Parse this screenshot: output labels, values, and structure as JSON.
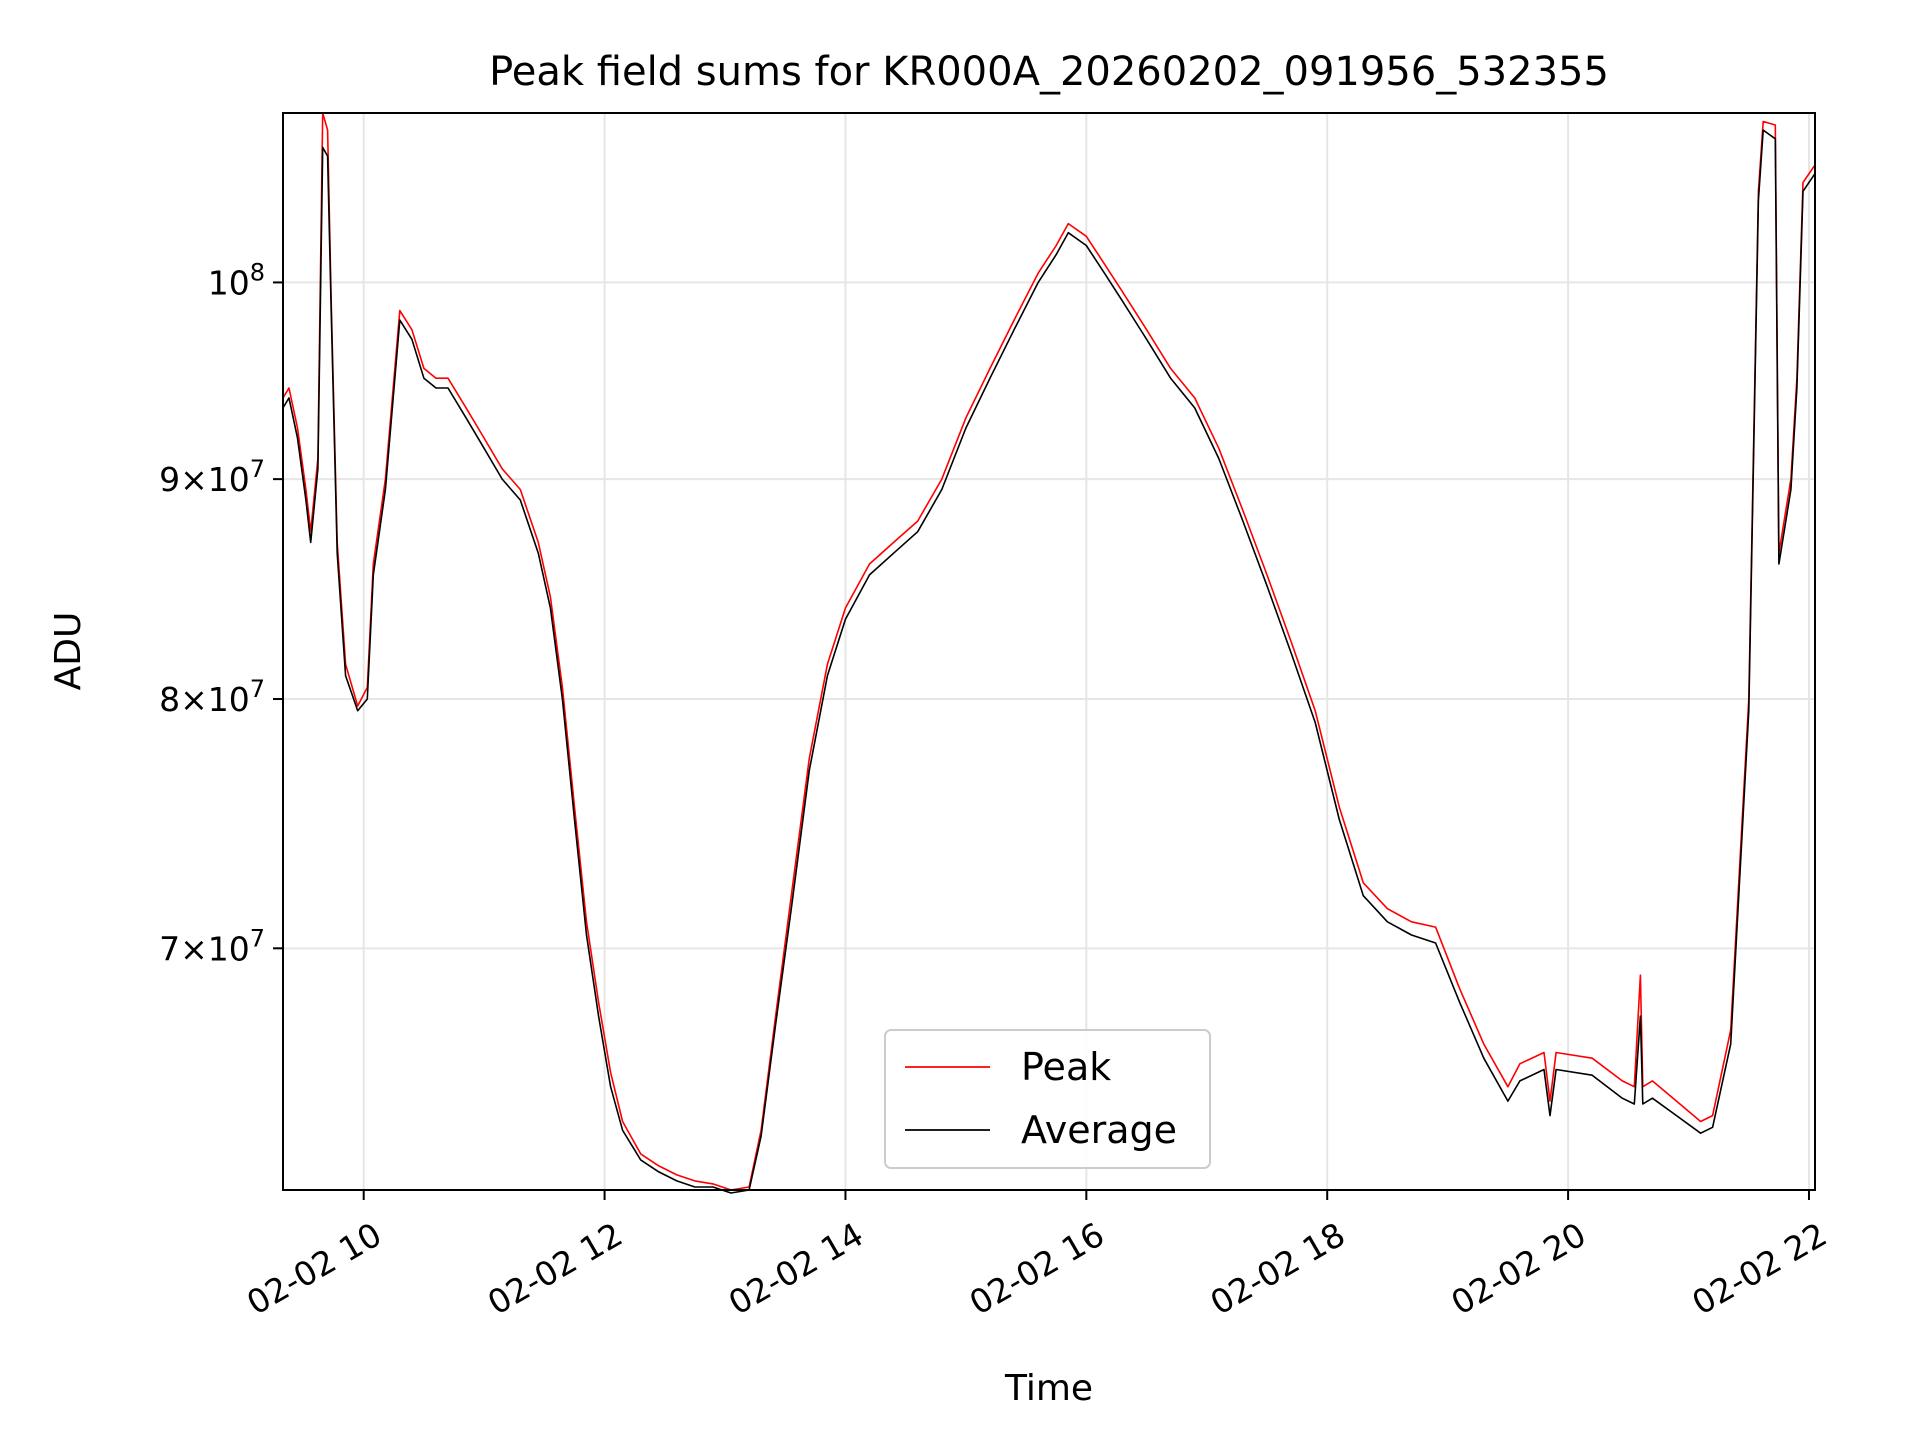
{
  "chart_data": {
    "type": "line",
    "title": "Peak field sums for KR000A_20260202_091956_532355",
    "xlabel": "Time",
    "ylabel": "ADU",
    "yscale": "log",
    "xlim": [
      9.33,
      22.05
    ],
    "ylim": [
      61500000.0,
      109500000.0
    ],
    "grid": true,
    "legend_position": "lower-center",
    "x_ticks": [
      {
        "value": 10,
        "label": "02-02 10"
      },
      {
        "value": 12,
        "label": "02-02 12"
      },
      {
        "value": 14,
        "label": "02-02 14"
      },
      {
        "value": 16,
        "label": "02-02 16"
      },
      {
        "value": 18,
        "label": "02-02 18"
      },
      {
        "value": 20,
        "label": "02-02 20"
      },
      {
        "value": 22,
        "label": "02-02 22"
      }
    ],
    "y_ticks": [
      {
        "value": 70000000,
        "mant": "7",
        "exp": "7"
      },
      {
        "value": 80000000,
        "mant": "8",
        "exp": "7"
      },
      {
        "value": 90000000,
        "mant": "9",
        "exp": "7"
      },
      {
        "value": 100000000,
        "mant": "",
        "exp": "8"
      }
    ],
    "series": [
      {
        "name": "Peak",
        "color": "#ff0000",
        "points": [
          [
            9.33,
            94000000.0
          ],
          [
            9.38,
            94500000.0
          ],
          [
            9.45,
            92500000.0
          ],
          [
            9.52,
            89500000.0
          ],
          [
            9.56,
            87500000.0
          ],
          [
            9.62,
            91000000.0
          ],
          [
            9.66,
            109500000.0
          ],
          [
            9.7,
            108500000.0
          ],
          [
            9.73,
            99000000.0
          ],
          [
            9.78,
            87000000.0
          ],
          [
            9.85,
            81500000.0
          ],
          [
            9.95,
            79700000.0
          ],
          [
            10.03,
            80500000.0
          ],
          [
            10.08,
            86000000.0
          ],
          [
            10.18,
            90000000.0
          ],
          [
            10.3,
            98500000.0
          ],
          [
            10.4,
            97500000.0
          ],
          [
            10.5,
            95500000.0
          ],
          [
            10.6,
            95000000.0
          ],
          [
            10.7,
            95000000.0
          ],
          [
            10.85,
            93500000.0
          ],
          [
            11.0,
            92000000.0
          ],
          [
            11.15,
            90500000.0
          ],
          [
            11.3,
            89500000.0
          ],
          [
            11.45,
            87000000.0
          ],
          [
            11.55,
            84500000.0
          ],
          [
            11.65,
            80500000.0
          ],
          [
            11.75,
            75500000.0
          ],
          [
            11.85,
            71000000.0
          ],
          [
            11.95,
            68000000.0
          ],
          [
            12.05,
            65500000.0
          ],
          [
            12.15,
            63800000.0
          ],
          [
            12.3,
            62700000.0
          ],
          [
            12.45,
            62300000.0
          ],
          [
            12.6,
            62000000.0
          ],
          [
            12.75,
            61800000.0
          ],
          [
            12.9,
            61700000.0
          ],
          [
            13.05,
            61500000.0
          ],
          [
            13.2,
            61600000.0
          ],
          [
            13.3,
            63500000.0
          ],
          [
            13.42,
            67500000.0
          ],
          [
            13.55,
            72000000.0
          ],
          [
            13.7,
            77500000.0
          ],
          [
            13.85,
            81500000.0
          ],
          [
            14.0,
            84000000.0
          ],
          [
            14.2,
            86000000.0
          ],
          [
            14.4,
            87000000.0
          ],
          [
            14.6,
            88000000.0
          ],
          [
            14.8,
            90000000.0
          ],
          [
            15.0,
            93000000.0
          ],
          [
            15.2,
            95500000.0
          ],
          [
            15.4,
            98000000.0
          ],
          [
            15.6,
            100500000.0
          ],
          [
            15.75,
            102000000.0
          ],
          [
            15.85,
            103200000.0
          ],
          [
            16.0,
            102500000.0
          ],
          [
            16.15,
            101000000.0
          ],
          [
            16.3,
            99500000.0
          ],
          [
            16.5,
            97500000.0
          ],
          [
            16.7,
            95500000.0
          ],
          [
            16.9,
            94000000.0
          ],
          [
            17.1,
            91500000.0
          ],
          [
            17.3,
            88500000.0
          ],
          [
            17.5,
            85500000.0
          ],
          [
            17.7,
            82500000.0
          ],
          [
            17.9,
            79500000.0
          ],
          [
            18.1,
            75500000.0
          ],
          [
            18.3,
            72500000.0
          ],
          [
            18.5,
            71500000.0
          ],
          [
            18.7,
            71000000.0
          ],
          [
            18.9,
            70800000.0
          ],
          [
            19.1,
            68500000.0
          ],
          [
            19.3,
            66500000.0
          ],
          [
            19.5,
            65000000.0
          ],
          [
            19.6,
            65800000.0
          ],
          [
            19.8,
            66200000.0
          ],
          [
            19.85,
            64500000.0
          ],
          [
            19.9,
            66200000.0
          ],
          [
            20.2,
            66000000.0
          ],
          [
            20.45,
            65200000.0
          ],
          [
            20.55,
            65000000.0
          ],
          [
            20.6,
            69000000.0
          ],
          [
            20.62,
            65000000.0
          ],
          [
            20.7,
            65200000.0
          ],
          [
            20.9,
            64500000.0
          ],
          [
            21.1,
            63800000.0
          ],
          [
            21.2,
            64000000.0
          ],
          [
            21.35,
            67000000.0
          ],
          [
            21.5,
            80000000.0
          ],
          [
            21.58,
            105000000.0
          ],
          [
            21.62,
            109000000.0
          ],
          [
            21.72,
            108800000.0
          ],
          [
            21.75,
            86500000.0
          ],
          [
            21.85,
            90000000.0
          ],
          [
            21.9,
            95000000.0
          ],
          [
            21.95,
            105500000.0
          ],
          [
            22.05,
            106500000.0
          ]
        ]
      },
      {
        "name": "Average",
        "color": "#000000",
        "points": [
          [
            9.33,
            93500000.0
          ],
          [
            9.38,
            94000000.0
          ],
          [
            9.45,
            92000000.0
          ],
          [
            9.52,
            89000000.0
          ],
          [
            9.56,
            87000000.0
          ],
          [
            9.62,
            90500000.0
          ],
          [
            9.66,
            107500000.0
          ],
          [
            9.7,
            107000000.0
          ],
          [
            9.73,
            98500000.0
          ],
          [
            9.78,
            86500000.0
          ],
          [
            9.85,
            81000000.0
          ],
          [
            9.95,
            79500000.0
          ],
          [
            10.03,
            80000000.0
          ],
          [
            10.08,
            85500000.0
          ],
          [
            10.18,
            89500000.0
          ],
          [
            10.3,
            98000000.0
          ],
          [
            10.4,
            97000000.0
          ],
          [
            10.5,
            95000000.0
          ],
          [
            10.6,
            94500000.0
          ],
          [
            10.7,
            94500000.0
          ],
          [
            10.85,
            93000000.0
          ],
          [
            11.0,
            91500000.0
          ],
          [
            11.15,
            90000000.0
          ],
          [
            11.3,
            89000000.0
          ],
          [
            11.45,
            86500000.0
          ],
          [
            11.55,
            84000000.0
          ],
          [
            11.65,
            80000000.0
          ],
          [
            11.75,
            75000000.0
          ],
          [
            11.85,
            70500000.0
          ],
          [
            11.95,
            67500000.0
          ],
          [
            12.05,
            65000000.0
          ],
          [
            12.15,
            63500000.0
          ],
          [
            12.3,
            62500000.0
          ],
          [
            12.45,
            62100000.0
          ],
          [
            12.6,
            61800000.0
          ],
          [
            12.75,
            61600000.0
          ],
          [
            12.9,
            61600000.0
          ],
          [
            13.05,
            61400000.0
          ],
          [
            13.2,
            61500000.0
          ],
          [
            13.3,
            63300000.0
          ],
          [
            13.42,
            67200000.0
          ],
          [
            13.55,
            71500000.0
          ],
          [
            13.7,
            77000000.0
          ],
          [
            13.85,
            81000000.0
          ],
          [
            14.0,
            83500000.0
          ],
          [
            14.2,
            85500000.0
          ],
          [
            14.4,
            86500000.0
          ],
          [
            14.6,
            87500000.0
          ],
          [
            14.8,
            89500000.0
          ],
          [
            15.0,
            92500000.0
          ],
          [
            15.2,
            95000000.0
          ],
          [
            15.4,
            97500000.0
          ],
          [
            15.6,
            100000000.0
          ],
          [
            15.75,
            101500000.0
          ],
          [
            15.85,
            102700000.0
          ],
          [
            16.0,
            102000000.0
          ],
          [
            16.15,
            100500000.0
          ],
          [
            16.3,
            99000000.0
          ],
          [
            16.5,
            97000000.0
          ],
          [
            16.7,
            95000000.0
          ],
          [
            16.9,
            93500000.0
          ],
          [
            17.1,
            91000000.0
          ],
          [
            17.3,
            88000000.0
          ],
          [
            17.5,
            85000000.0
          ],
          [
            17.7,
            82000000.0
          ],
          [
            17.9,
            79000000.0
          ],
          [
            18.1,
            75000000.0
          ],
          [
            18.3,
            72000000.0
          ],
          [
            18.5,
            71000000.0
          ],
          [
            18.7,
            70500000.0
          ],
          [
            18.9,
            70200000.0
          ],
          [
            19.1,
            68000000.0
          ],
          [
            19.3,
            66000000.0
          ],
          [
            19.5,
            64500000.0
          ],
          [
            19.6,
            65200000.0
          ],
          [
            19.8,
            65600000.0
          ],
          [
            19.85,
            64000000.0
          ],
          [
            19.9,
            65600000.0
          ],
          [
            20.2,
            65400000.0
          ],
          [
            20.45,
            64600000.0
          ],
          [
            20.55,
            64400000.0
          ],
          [
            20.6,
            67500000.0
          ],
          [
            20.62,
            64400000.0
          ],
          [
            20.7,
            64600000.0
          ],
          [
            20.9,
            64000000.0
          ],
          [
            21.1,
            63400000.0
          ],
          [
            21.2,
            63600000.0
          ],
          [
            21.35,
            66500000.0
          ],
          [
            21.5,
            79500000.0
          ],
          [
            21.58,
            104500000.0
          ],
          [
            21.62,
            108500000.0
          ],
          [
            21.72,
            108000000.0
          ],
          [
            21.75,
            86000000.0
          ],
          [
            21.85,
            89500000.0
          ],
          [
            21.9,
            94500000.0
          ],
          [
            21.95,
            105000000.0
          ],
          [
            22.05,
            106000000.0
          ]
        ]
      }
    ]
  }
}
